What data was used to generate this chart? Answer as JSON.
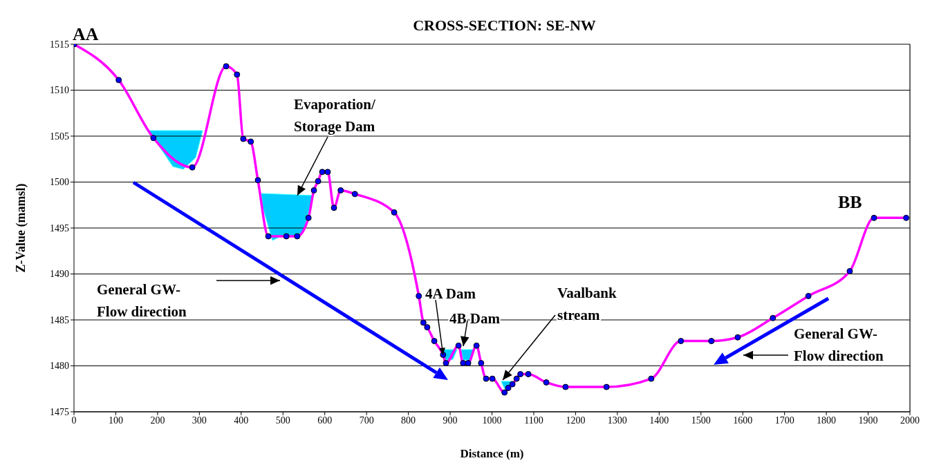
{
  "chart_data": {
    "type": "line",
    "title": "CROSS-SECTION: SE-NW",
    "xlabel": "Distance (m)",
    "ylabel": "Z-Value (mamsl)",
    "x": [
      0,
      107,
      190,
      283,
      364,
      390,
      405,
      423,
      440,
      465,
      508,
      534,
      561,
      574,
      584,
      594,
      607,
      622,
      638,
      672,
      766,
      825,
      836,
      845,
      862,
      883,
      890,
      920,
      931,
      943,
      963,
      974,
      986,
      1001,
      1030,
      1039,
      1049,
      1059,
      1068,
      1087,
      1130,
      1176,
      1274,
      1381,
      1452,
      1525,
      1588,
      1672,
      1757,
      1856,
      1914,
      1991
    ],
    "series": [
      {
        "color": "#ff00ff",
        "values": [
          1515,
          1511.1,
          1504.8,
          1501.6,
          1512.6,
          1511.7,
          1504.7,
          1504.4,
          1500.2,
          1494.1,
          1494.1,
          1494.1,
          1496.1,
          1499.1,
          1500.1,
          1501.1,
          1501.1,
          1497.2,
          1499.1,
          1498.7,
          1496.7,
          1487.6,
          1484.7,
          1484.2,
          1482.7,
          1481.2,
          1480.3,
          1482.2,
          1480.3,
          1480.3,
          1482.2,
          1480.3,
          1478.6,
          1478.6,
          1477.1,
          1477.6,
          1478,
          1478.6,
          1479.1,
          1479.1,
          1478.2,
          1477.7,
          1477.7,
          1478.6,
          1482.7,
          1482.7,
          1483.1,
          1485.2,
          1487.6,
          1490.3,
          1496.1,
          1496.1
        ],
        "colors": [
          "#0000ff",
          "#0000ff",
          "#0000ff",
          "#0000ff",
          "#0000ff",
          "#0000ff",
          "#0000ff",
          "#0000ff",
          "#0000ff",
          "#0000ff",
          "#0000ff",
          "#0000ff",
          "#0000ff",
          "#0000ff",
          "#0000ff",
          "#0000ff",
          "#0000ff",
          "#0000ff",
          "#0000ff",
          "#0000ff",
          "#0000ff",
          "#0000ff",
          "#0000ff",
          "#0000ff",
          "#0000ff",
          "#0000ff",
          "#0000ff",
          "#0000ff",
          "#0000ff",
          "#0000ff",
          "#0000ff",
          "#0000ff",
          "#0000ff",
          "#0000ff",
          "#0000ff",
          "#0000ff",
          "#0000ff",
          "#0000ff",
          "#0000ff",
          "#0000ff",
          "#0000ff",
          "#0000ff",
          "#0000ff",
          "#0000ff",
          "#0000ff",
          "#0000ff",
          "#0000ff",
          "#0000ff",
          "#0000ff",
          "#0000ff",
          "#0000ff",
          "#0000ff"
        ]
      }
    ],
    "xlim": [
      0,
      2000
    ],
    "xticks": [
      0,
      100,
      200,
      300,
      400,
      500,
      600,
      700,
      800,
      900,
      1000,
      1100,
      1200,
      1300,
      1400,
      1500,
      1600,
      1700,
      1800,
      1900,
      2000
    ],
    "ylim": [
      1475,
      1515
    ],
    "yticks": [
      1475,
      1480,
      1485,
      1490,
      1495,
      1500,
      1505,
      1510,
      1515
    ],
    "grid": "y",
    "marker": "circle",
    "line_style": "solid",
    "annotations": [
      {
        "text": "AA",
        "x": 0,
        "y": 1515
      },
      {
        "text": "BB",
        "x": 1914,
        "y": 1496.1
      },
      "Evaporation/\nStorage Dam",
      "General GW-\nFlow direction",
      {
        "text": "4A Dam",
        "x": 883,
        "y": 1481.2
      },
      "4B Dam",
      "Vaalbank\nstream",
      "General GW-\nFlow direction"
    ]
  }
}
